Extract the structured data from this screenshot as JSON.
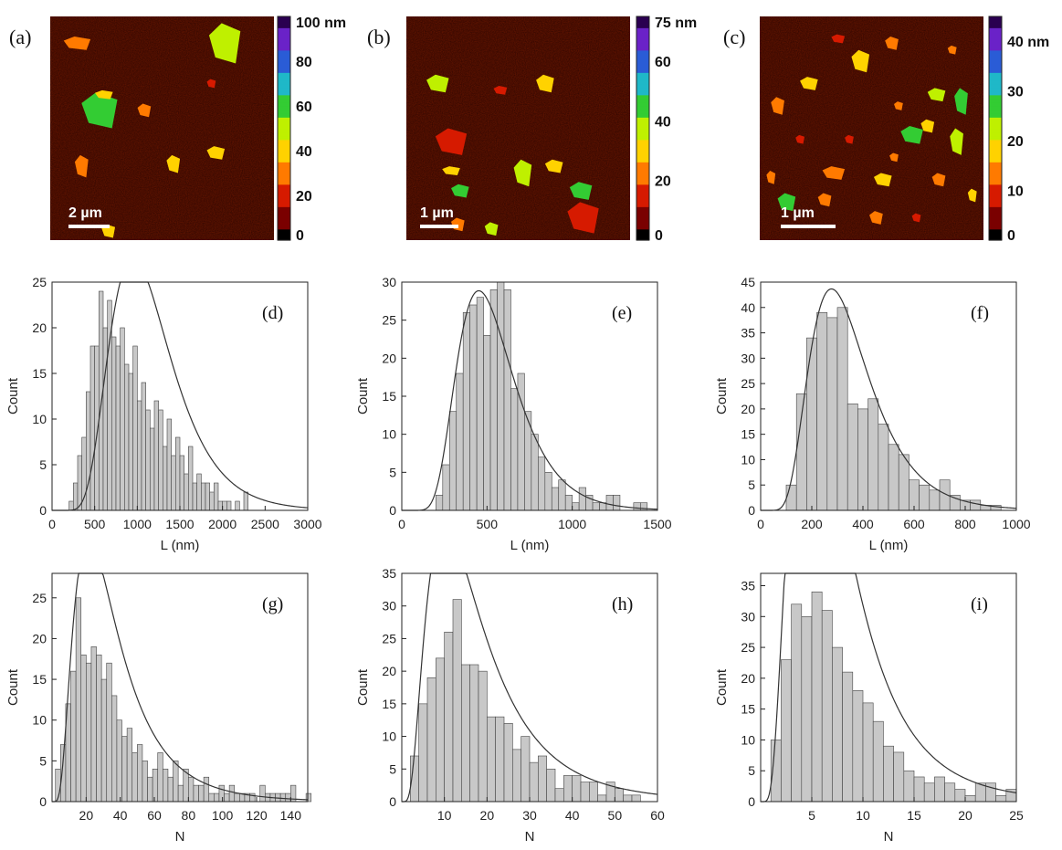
{
  "afm_images": [
    {
      "panel": "(a)",
      "scalebar": "2 µm",
      "colorbar_ticks": [
        "100 nm",
        "80",
        "60",
        "40",
        "20",
        "0"
      ],
      "max_nm": 100
    },
    {
      "panel": "(b)",
      "scalebar": "1 µm",
      "colorbar_ticks": [
        "75 nm",
        "60",
        "40",
        "20",
        "0"
      ],
      "max_nm": 75
    },
    {
      "panel": "(c)",
      "scalebar": "1 µm",
      "colorbar_ticks": [
        "40 nm",
        "30",
        "20",
        "10",
        "0"
      ],
      "max_nm": 45
    }
  ],
  "colormap": [
    "#000000",
    "#7a0000",
    "#d61a00",
    "#ff7a00",
    "#ffd200",
    "#bff000",
    "#33cc33",
    "#1fb8c8",
    "#2a5cd6",
    "#6a22c8",
    "#2a0050"
  ],
  "colors": {
    "bar_fill": "#c8c8c8",
    "bar_edge": "#444444",
    "curve": "#333333",
    "axis": "#222222"
  },
  "chart_data": [
    {
      "type": "bar",
      "panel": "(d)",
      "xlabel": "L (nm)",
      "ylabel": "Count",
      "xlim": [
        0,
        3000
      ],
      "ylim": [
        0,
        25
      ],
      "xticks": [
        0,
        500,
        1000,
        1500,
        2000,
        2500,
        3000
      ],
      "yticks": [
        0,
        5,
        10,
        15,
        20,
        25
      ],
      "bin_start": 200,
      "bin_width": 50,
      "values": [
        1,
        3,
        6,
        8,
        13,
        18,
        18,
        24,
        20,
        23,
        19,
        18,
        20,
        16,
        15,
        18,
        12,
        14,
        11,
        9,
        12,
        11,
        7,
        10,
        6,
        8,
        6,
        4,
        7,
        3,
        4,
        3,
        3,
        2,
        3,
        1,
        1,
        1,
        0,
        1,
        0,
        2
      ],
      "fit": {
        "kind": "lognormal",
        "scale": 26900,
        "mu": 7.0,
        "sigma": 0.38
      }
    },
    {
      "type": "bar",
      "panel": "(e)",
      "xlabel": "L (nm)",
      "ylabel": "Count",
      "xlim": [
        0,
        1500
      ],
      "ylim": [
        0,
        30
      ],
      "xticks": [
        0,
        500,
        1000,
        1500
      ],
      "yticks": [
        0,
        5,
        10,
        15,
        20,
        25,
        30
      ],
      "bin_start": 200,
      "bin_width": 40,
      "values": [
        2,
        6,
        13,
        18,
        26,
        27,
        28,
        23,
        29,
        30,
        29,
        16,
        18,
        13,
        10,
        7,
        5,
        3,
        4,
        2,
        1,
        3,
        2,
        1,
        1,
        2,
        2,
        0,
        0,
        1,
        1
      ],
      "fit": {
        "kind": "lognormal",
        "scale": 12950,
        "mu": 6.25,
        "sigma": 0.37
      }
    },
    {
      "type": "bar",
      "panel": "(f)",
      "xlabel": "L (nm)",
      "ylabel": "Count",
      "xlim": [
        0,
        1000
      ],
      "ylim": [
        0,
        45
      ],
      "xticks": [
        0,
        200,
        400,
        600,
        800,
        1000
      ],
      "yticks": [
        0,
        5,
        10,
        15,
        20,
        25,
        30,
        35,
        40,
        45
      ],
      "bin_start": 100,
      "bin_width": 40,
      "values": [
        5,
        23,
        34,
        39,
        38,
        40,
        21,
        20,
        22,
        17,
        13,
        11,
        6,
        5,
        4,
        6,
        3,
        2,
        2,
        1,
        1
      ],
      "fit": {
        "kind": "lognormal",
        "scale": 13900,
        "mu": 5.8,
        "sigma": 0.42
      }
    },
    {
      "type": "bar",
      "panel": "(g)",
      "xlabel": "N",
      "ylabel": "Count",
      "xlim": [
        0,
        150
      ],
      "ylim": [
        0,
        28
      ],
      "xticks": [
        20,
        40,
        60,
        80,
        100,
        120,
        140
      ],
      "yticks": [
        0,
        5,
        10,
        15,
        20,
        25
      ],
      "bin_start": 2,
      "bin_width": 3,
      "values": [
        4,
        7,
        12,
        16,
        25,
        18,
        17,
        19,
        18,
        15,
        17,
        13,
        10,
        8,
        9,
        6,
        7,
        5,
        3,
        4,
        6,
        4,
        3,
        5,
        2,
        4,
        3,
        2,
        2,
        3,
        1,
        1,
        2,
        1,
        2,
        1,
        1,
        1,
        1,
        0,
        2,
        1,
        1,
        1,
        1,
        1,
        2,
        0,
        0,
        1
      ],
      "fit": {
        "kind": "lognormal",
        "scale": 1300,
        "mu": 3.45,
        "sigma": 0.62
      }
    },
    {
      "type": "bar",
      "panel": "(h)",
      "xlabel": "N",
      "ylabel": "Count",
      "xlim": [
        0,
        60
      ],
      "ylim": [
        0,
        35
      ],
      "xticks": [
        10,
        20,
        30,
        40,
        50,
        60
      ],
      "yticks": [
        0,
        5,
        10,
        15,
        20,
        25,
        30,
        35
      ],
      "bin_start": 2,
      "bin_width": 2,
      "values": [
        7,
        15,
        19,
        22,
        26,
        31,
        21,
        21,
        20,
        13,
        13,
        12,
        8,
        10,
        6,
        7,
        5,
        2,
        4,
        4,
        3,
        3,
        1,
        3,
        2,
        1,
        1,
        0,
        0
      ],
      "fit": {
        "kind": "lognormal",
        "scale": 880,
        "mu": 2.75,
        "sigma": 0.66
      }
    },
    {
      "type": "bar",
      "panel": "(i)",
      "xlabel": "N",
      "ylabel": "Count",
      "xlim": [
        0,
        25
      ],
      "ylim": [
        0,
        37
      ],
      "xticks": [
        5,
        10,
        15,
        20,
        25
      ],
      "yticks": [
        0,
        5,
        10,
        15,
        20,
        25,
        30,
        35
      ],
      "bin_start": 1,
      "bin_width": 1,
      "values": [
        10,
        23,
        32,
        30,
        34,
        31,
        25,
        21,
        18,
        16,
        13,
        9,
        8,
        5,
        4,
        3,
        4,
        3,
        2,
        1,
        3,
        3,
        1,
        2
      ],
      "fit": {
        "kind": "lognormal",
        "scale": 600,
        "mu": 1.9,
        "sigma": 0.6
      }
    }
  ]
}
